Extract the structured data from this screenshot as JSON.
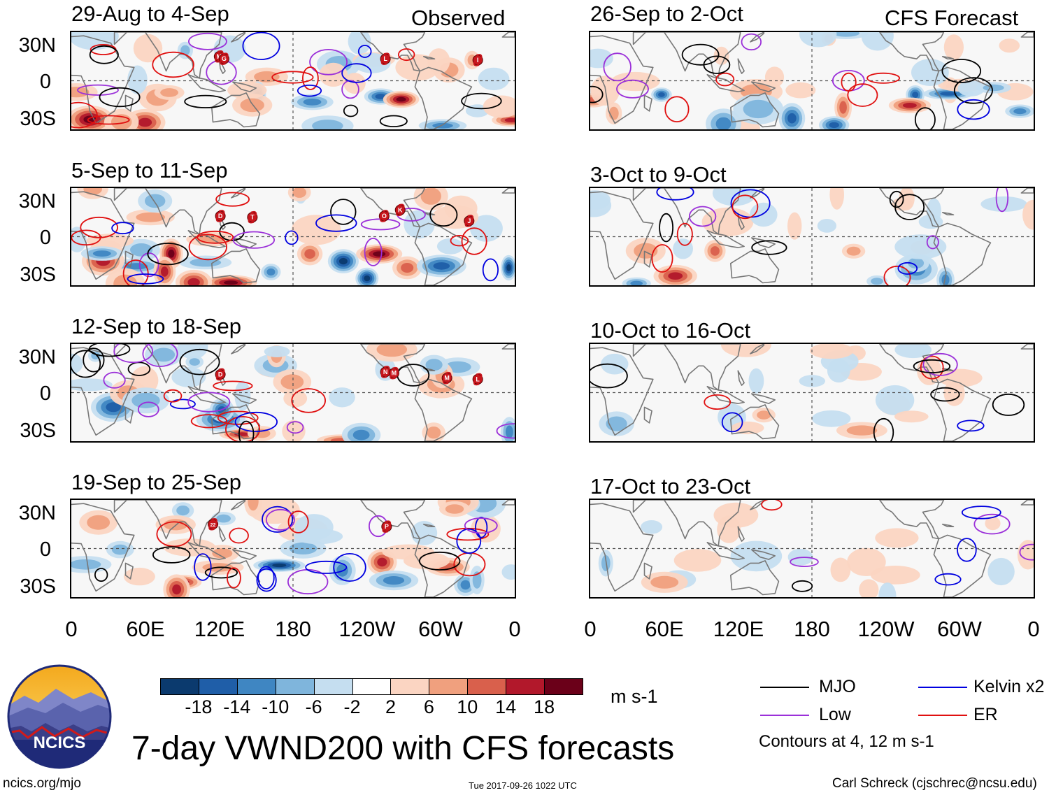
{
  "figure": {
    "main_title": "7-day VWND200 with CFS forecasts",
    "observed_label": "Observed",
    "forecast_label": "CFS Forecast",
    "units": "m s-1",
    "contour_note": "Contours at 4, 12 m s-1",
    "footer_left": "ncics.org/mjo",
    "footer_center": "Tue 2017-09-26 1022 UTC",
    "footer_right": "Carl Schreck (cjschrec@ncsu.edu)",
    "logo_text": "NCICS"
  },
  "chart_data": {
    "type": "heatmap",
    "variable": "200-hPa meridional wind anomaly (VWND200)",
    "lat_ticks": [
      "30N",
      "0",
      "30S"
    ],
    "lon_ticks": [
      "0",
      "60E",
      "120E",
      "180",
      "120W",
      "60W",
      "0"
    ],
    "lat_range": [
      -40,
      40
    ],
    "lon_range": [
      0,
      360
    ],
    "colorbar": {
      "ticks": [
        "-18",
        "-14",
        "-10",
        "-6",
        "-2",
        "2",
        "6",
        "10",
        "14",
        "18"
      ],
      "colors": [
        "#0b3a6e",
        "#1f5ea8",
        "#3f86c2",
        "#7fb5dc",
        "#c5def0",
        "#ffffff",
        "#fbd5c2",
        "#f0a07e",
        "#d9604c",
        "#b2182b",
        "#6b0019"
      ]
    },
    "contour_legend": [
      {
        "label": "MJO",
        "color": "#000000"
      },
      {
        "label": "Low",
        "color": "#9b30d9"
      },
      {
        "label": "Kelvin x2",
        "color": "#0000e0"
      },
      {
        "label": "ER",
        "color": "#e01010"
      }
    ],
    "panels": {
      "observed": [
        {
          "period": "29-Aug to 4-Sep",
          "storms": [
            {
              "id": "M",
              "lon": 120,
              "lat": 20
            },
            {
              "id": "G",
              "lon": 124,
              "lat": 18
            },
            {
              "id": "L",
              "lon": 255,
              "lat": 18
            },
            {
              "id": "I",
              "lon": 330,
              "lat": 17
            }
          ]
        },
        {
          "period": "5-Sep to 11-Sep",
          "storms": [
            {
              "id": "D",
              "lon": 121,
              "lat": 17
            },
            {
              "id": "T",
              "lon": 147,
              "lat": 16
            },
            {
              "id": "O",
              "lon": 254,
              "lat": 17
            },
            {
              "id": "K",
              "lon": 267,
              "lat": 22
            },
            {
              "id": "J",
              "lon": 323,
              "lat": 13
            }
          ]
        },
        {
          "period": "12-Sep to 18-Sep",
          "storms": [
            {
              "id": "D",
              "lon": 121,
              "lat": 15
            },
            {
              "id": "N",
              "lon": 255,
              "lat": 17
            },
            {
              "id": "M",
              "lon": 262,
              "lat": 16
            },
            {
              "id": "M",
              "lon": 305,
              "lat": 12
            },
            {
              "id": "L",
              "lon": 330,
              "lat": 11
            }
          ]
        },
        {
          "period": "19-Sep to 25-Sep",
          "storms": [
            {
              "id": "22",
              "lon": 115,
              "lat": 20
            },
            {
              "id": "P",
              "lon": 256,
              "lat": 18
            }
          ]
        }
      ],
      "forecast": [
        {
          "period": "26-Sep to 2-Oct"
        },
        {
          "period": "3-Oct to 9-Oct"
        },
        {
          "period": "10-Oct to 16-Oct"
        },
        {
          "period": "17-Oct to 23-Oct"
        }
      ]
    }
  }
}
